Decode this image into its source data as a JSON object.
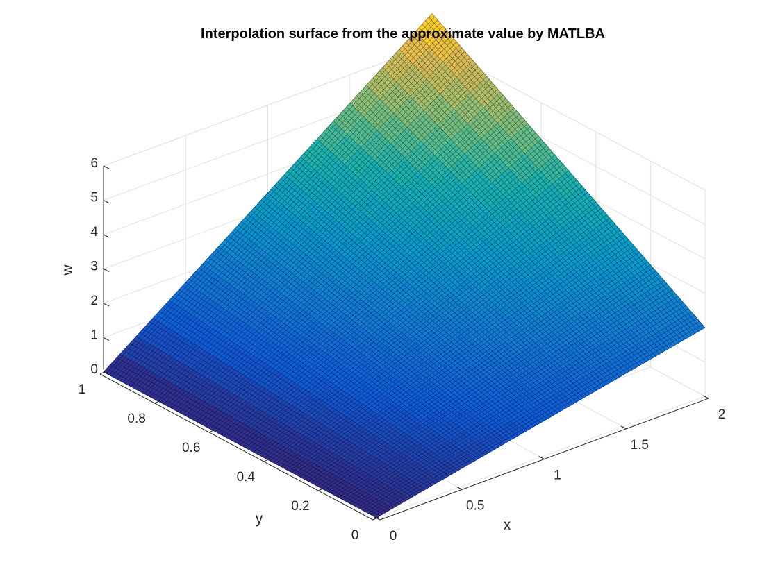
{
  "chart_data": {
    "type": "surface",
    "title": "Interpolation surface from the approximate value by MATLBA",
    "xlabel": "x",
    "ylabel": "y",
    "zlabel": "w",
    "xlim": [
      0,
      2
    ],
    "ylim": [
      0,
      1
    ],
    "zlim": [
      0,
      6
    ],
    "x_ticks": [
      0,
      0.5,
      1,
      1.5,
      2
    ],
    "x_tick_labels": [
      "0",
      "0.5",
      "1",
      "1.5",
      "2"
    ],
    "y_ticks": [
      0,
      0.2,
      0.4,
      0.6,
      0.8,
      1
    ],
    "y_tick_labels": [
      "0",
      "0.2",
      "0.4",
      "0.6",
      "0.8",
      "1"
    ],
    "z_ticks": [
      0,
      1,
      2,
      3,
      4,
      5,
      6
    ],
    "z_tick_labels": [
      "0",
      "1",
      "2",
      "3",
      "4",
      "5",
      "6"
    ],
    "grid": true,
    "colormap": "parula",
    "surface_corners": [
      {
        "x": 0,
        "y": 0,
        "w": 0
      },
      {
        "x": 2,
        "y": 0,
        "w": 2
      },
      {
        "x": 0,
        "y": 1,
        "w": 0
      },
      {
        "x": 2,
        "y": 1,
        "w": 6.9
      }
    ],
    "mesh_resolution": 100
  }
}
